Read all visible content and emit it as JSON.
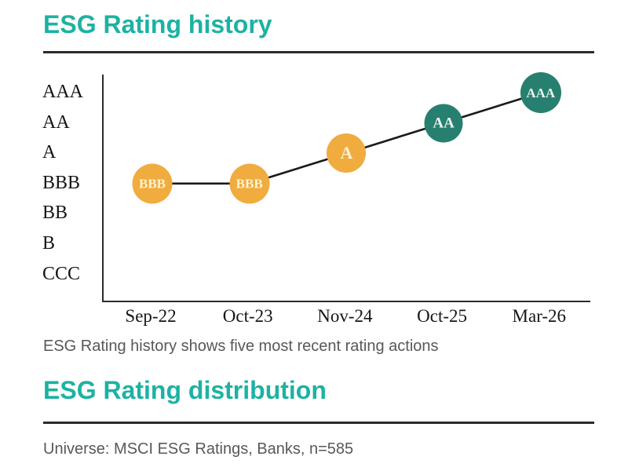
{
  "colors": {
    "accent_teal": "#1DB2A2",
    "rule_dark": "#282c2c",
    "axis_line": "#2b2b2b",
    "trend_line": "#1a1a1a",
    "caption_gray": "#57585a",
    "marker_amber": "#F0AC3E",
    "marker_teal": "#27806F",
    "marker_text_on_amber": "#FCF3D4",
    "marker_text_on_teal": "#ECF4F1"
  },
  "history": {
    "title": "ESG Rating history",
    "caption": "ESG Rating history shows five most recent rating actions"
  },
  "distribution": {
    "title": "ESG Rating distribution",
    "caption": "Universe: MSCI ESG Ratings, Banks, n=585"
  },
  "chart_data": {
    "type": "line",
    "title": "ESG Rating history",
    "x_categories": [
      "Sep-22",
      "Oct-23",
      "Nov-24",
      "Oct-25",
      "Mar-26"
    ],
    "y_axis_labels_top_to_bottom": [
      "AAA",
      "AA",
      "A",
      "BBB",
      "BB",
      "B",
      "CCC"
    ],
    "points": [
      {
        "date": "Sep-22",
        "rating": "BBB",
        "color": "#F0AC3E",
        "text_color": "#FCF3D4",
        "size": 51
      },
      {
        "date": "Oct-23",
        "rating": "BBB",
        "color": "#F0AC3E",
        "text_color": "#FCF3D4",
        "size": 51
      },
      {
        "date": "Nov-24",
        "rating": "A",
        "color": "#F0AC3E",
        "text_color": "#FCF3D4",
        "size": 50
      },
      {
        "date": "Oct-25",
        "rating": "AA",
        "color": "#27806F",
        "text_color": "#ECF4F1",
        "size": 49
      },
      {
        "date": "Mar-26",
        "rating": "AAA",
        "color": "#27806F",
        "text_color": "#ECF4F1",
        "size": 52
      }
    ],
    "grid": false,
    "legend": "none"
  }
}
